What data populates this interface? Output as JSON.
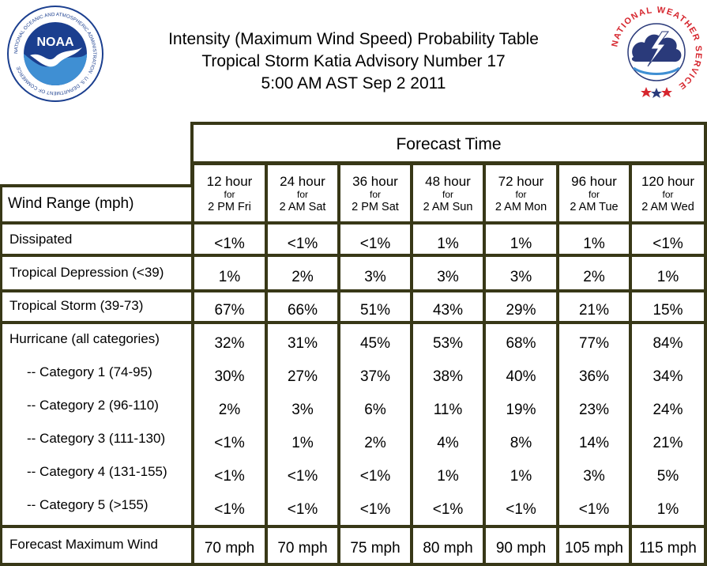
{
  "header": {
    "title_lines": [
      "Intensity (Maximum Wind Speed) Probability Table",
      "Tropical Storm Katia Advisory Number 17",
      "5:00 AM AST Sep 2 2011"
    ],
    "noaa_logo_text": "NOAA",
    "noaa_ring_text": "NATIONAL OCEANIC AND ATMOSPHERIC ADMINISTRATION · U.S. DEPARTMENT OF COMMERCE",
    "nws_ring_text": "NATIONAL WEATHER SERVICE"
  },
  "table": {
    "forecast_time_label": "Forecast Time",
    "wind_range_label": "Wind Range (mph)",
    "columns": [
      {
        "hours": "12 hour",
        "for": "for",
        "when": "2 PM Fri"
      },
      {
        "hours": "24 hour",
        "for": "for",
        "when": "2 AM Sat"
      },
      {
        "hours": "36 hour",
        "for": "for",
        "when": "2 PM Sat"
      },
      {
        "hours": "48 hour",
        "for": "for",
        "when": "2 AM Sun"
      },
      {
        "hours": "72 hour",
        "for": "for",
        "when": "2 AM Mon"
      },
      {
        "hours": "96 hour",
        "for": "for",
        "when": "2 AM Tue"
      },
      {
        "hours": "120 hour",
        "for": "for",
        "when": "2 AM Wed"
      }
    ],
    "rows": [
      {
        "label": "Dissipated",
        "values": [
          "<1%",
          "<1%",
          "<1%",
          "1%",
          "1%",
          "1%",
          "<1%"
        ]
      },
      {
        "label": "Tropical Depression (<39)",
        "values": [
          "1%",
          "2%",
          "3%",
          "3%",
          "3%",
          "2%",
          "1%"
        ]
      },
      {
        "label": "Tropical Storm (39-73)",
        "values": [
          "67%",
          "66%",
          "51%",
          "43%",
          "29%",
          "21%",
          "15%"
        ]
      },
      {
        "label": "Hurricane (all categories)",
        "values": [
          "32%",
          "31%",
          "45%",
          "53%",
          "68%",
          "77%",
          "84%"
        ]
      },
      {
        "label": "-- Category 1 (74-95)",
        "values": [
          "30%",
          "27%",
          "37%",
          "38%",
          "40%",
          "36%",
          "34%"
        ]
      },
      {
        "label": "-- Category 2 (96-110)",
        "values": [
          "2%",
          "3%",
          "6%",
          "11%",
          "19%",
          "23%",
          "24%"
        ]
      },
      {
        "label": "-- Category 3 (111-130)",
        "values": [
          "<1%",
          "1%",
          "2%",
          "4%",
          "8%",
          "14%",
          "21%"
        ]
      },
      {
        "label": "-- Category 4 (131-155)",
        "values": [
          "<1%",
          "<1%",
          "<1%",
          "1%",
          "1%",
          "3%",
          "5%"
        ]
      },
      {
        "label": "-- Category 5 (>155)",
        "values": [
          "<1%",
          "<1%",
          "<1%",
          "<1%",
          "<1%",
          "<1%",
          "1%"
        ]
      }
    ],
    "max_wind": {
      "label": "Forecast Maximum Wind",
      "values": [
        "70 mph",
        "70 mph",
        "75 mph",
        "80 mph",
        "90 mph",
        "105 mph",
        "115 mph"
      ]
    }
  },
  "colors": {
    "border": "#383817",
    "noaa_blue": "#1b3f8f",
    "noaa_light": "#3f8fd3",
    "nws_red": "#d6262e",
    "nws_navy": "#2a3a7a"
  }
}
